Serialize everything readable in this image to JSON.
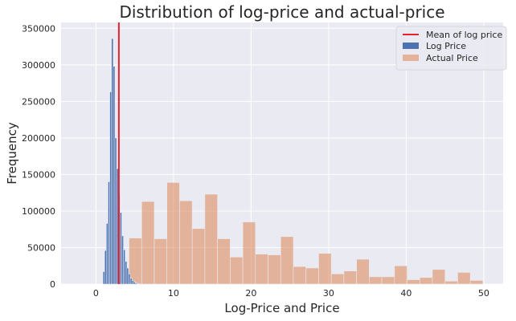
{
  "chart_data": {
    "type": "histogram",
    "title": "Distribution of log-price and actual-price",
    "xlabel": "Log-Price and Price",
    "ylabel": "Frequency",
    "xlim": [
      -4.5,
      52.5
    ],
    "ylim": [
      0,
      358000
    ],
    "xticks": [
      0,
      10,
      20,
      30,
      40,
      50
    ],
    "yticks": [
      0,
      50000,
      100000,
      150000,
      200000,
      250000,
      300000,
      350000
    ],
    "grid": true,
    "legend_position": "top-right",
    "series": [
      {
        "name": "Log Price",
        "color": "#4c72b0",
        "bin_width": 0.22,
        "bin_starts": [
          0.9,
          1.12,
          1.34,
          1.56,
          1.78,
          2.0,
          2.22,
          2.44,
          2.66,
          2.88,
          3.1,
          3.32,
          3.54,
          3.76,
          3.98,
          4.2,
          4.42,
          4.64,
          4.86,
          5.08,
          5.3,
          5.52,
          5.74
        ],
        "values": [
          17000,
          46000,
          83000,
          140000,
          263000,
          336000,
          298000,
          200000,
          158000,
          124000,
          98000,
          66000,
          47000,
          31000,
          22000,
          14000,
          8000,
          5000,
          3000,
          1500,
          700,
          300,
          100
        ]
      },
      {
        "name": "Actual Price",
        "color": "#dd8452",
        "bin_width": 1.63,
        "bin_starts": [
          1.0,
          2.63,
          4.26,
          5.89,
          7.52,
          9.15,
          10.78,
          12.41,
          14.04,
          15.67,
          17.3,
          18.93,
          20.56,
          22.19,
          23.82,
          25.45,
          27.08,
          28.71,
          30.34,
          31.97,
          33.6,
          35.23,
          36.86,
          38.49,
          40.12,
          41.75,
          43.38,
          45.01,
          46.64,
          48.27
        ],
        "values": [
          18000,
          17000,
          63000,
          113000,
          62000,
          139000,
          114000,
          76000,
          123000,
          62000,
          37000,
          85000,
          41000,
          40000,
          65000,
          24000,
          22000,
          42000,
          14000,
          18000,
          34000,
          10000,
          10000,
          25000,
          6000,
          9000,
          20000,
          4000,
          16000,
          5000
        ]
      }
    ],
    "mean_line": {
      "name": "Mean of log price",
      "x": 2.95,
      "color": "#e8212e"
    },
    "legend": [
      "Mean of log price",
      "Log Price",
      "Actual Price"
    ]
  }
}
